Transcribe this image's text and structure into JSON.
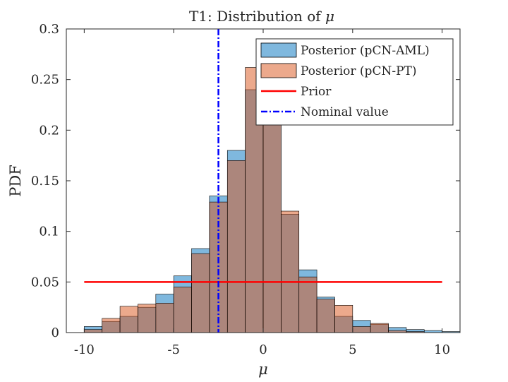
{
  "chart_data": {
    "type": "bar",
    "subtype": "overlaid-histogram",
    "title": "T1:  Distribution of μ",
    "title_prefix": "T1:  Distribution of ",
    "title_symbol": "μ",
    "xlabel": "μ",
    "ylabel": "PDF",
    "xlim": [
      -11,
      11
    ],
    "ylim": [
      0,
      0.3
    ],
    "xticks": [
      -10,
      -5,
      0,
      5,
      10
    ],
    "xtick_labels": [
      "-10",
      "-5",
      "0",
      "5",
      "10"
    ],
    "yticks": [
      0,
      0.05,
      0.1,
      0.15,
      0.2,
      0.25,
      0.3
    ],
    "ytick_labels": [
      "0",
      "0.05",
      "0.1",
      "0.15",
      "0.2",
      "0.25",
      "0.3"
    ],
    "grid": false,
    "legend_position": "top-right",
    "bin_width": 1,
    "bin_edges_start": -10,
    "series": [
      {
        "name": "Posterior (pCN-AML)",
        "kind": "histogram",
        "color": "#0072BD",
        "fill_opacity": 0.5,
        "values": [
          0.006,
          0.011,
          0.016,
          0.025,
          0.038,
          0.056,
          0.083,
          0.135,
          0.18,
          0.24,
          0.205,
          0.117,
          0.062,
          0.035,
          0.016,
          0.012,
          0.008,
          0.005,
          0.003,
          0.002,
          0.001
        ]
      },
      {
        "name": "Posterior (pCN-PT)",
        "kind": "histogram",
        "color": "#D95319",
        "fill_opacity": 0.5,
        "values": [
          0.003,
          0.014,
          0.026,
          0.028,
          0.029,
          0.045,
          0.078,
          0.129,
          0.17,
          0.262,
          0.212,
          0.12,
          0.055,
          0.033,
          0.027,
          0.006,
          0.009,
          0.002,
          0.001,
          0.0,
          0.0
        ]
      },
      {
        "name": "Prior",
        "kind": "line",
        "color": "#FF0000",
        "x": [
          -10,
          10
        ],
        "y": [
          0.05,
          0.05
        ]
      },
      {
        "name": "Nominal value",
        "kind": "vertical-line",
        "color": "#0000FF",
        "dash": "dash-dot",
        "x": -2.5
      }
    ]
  }
}
